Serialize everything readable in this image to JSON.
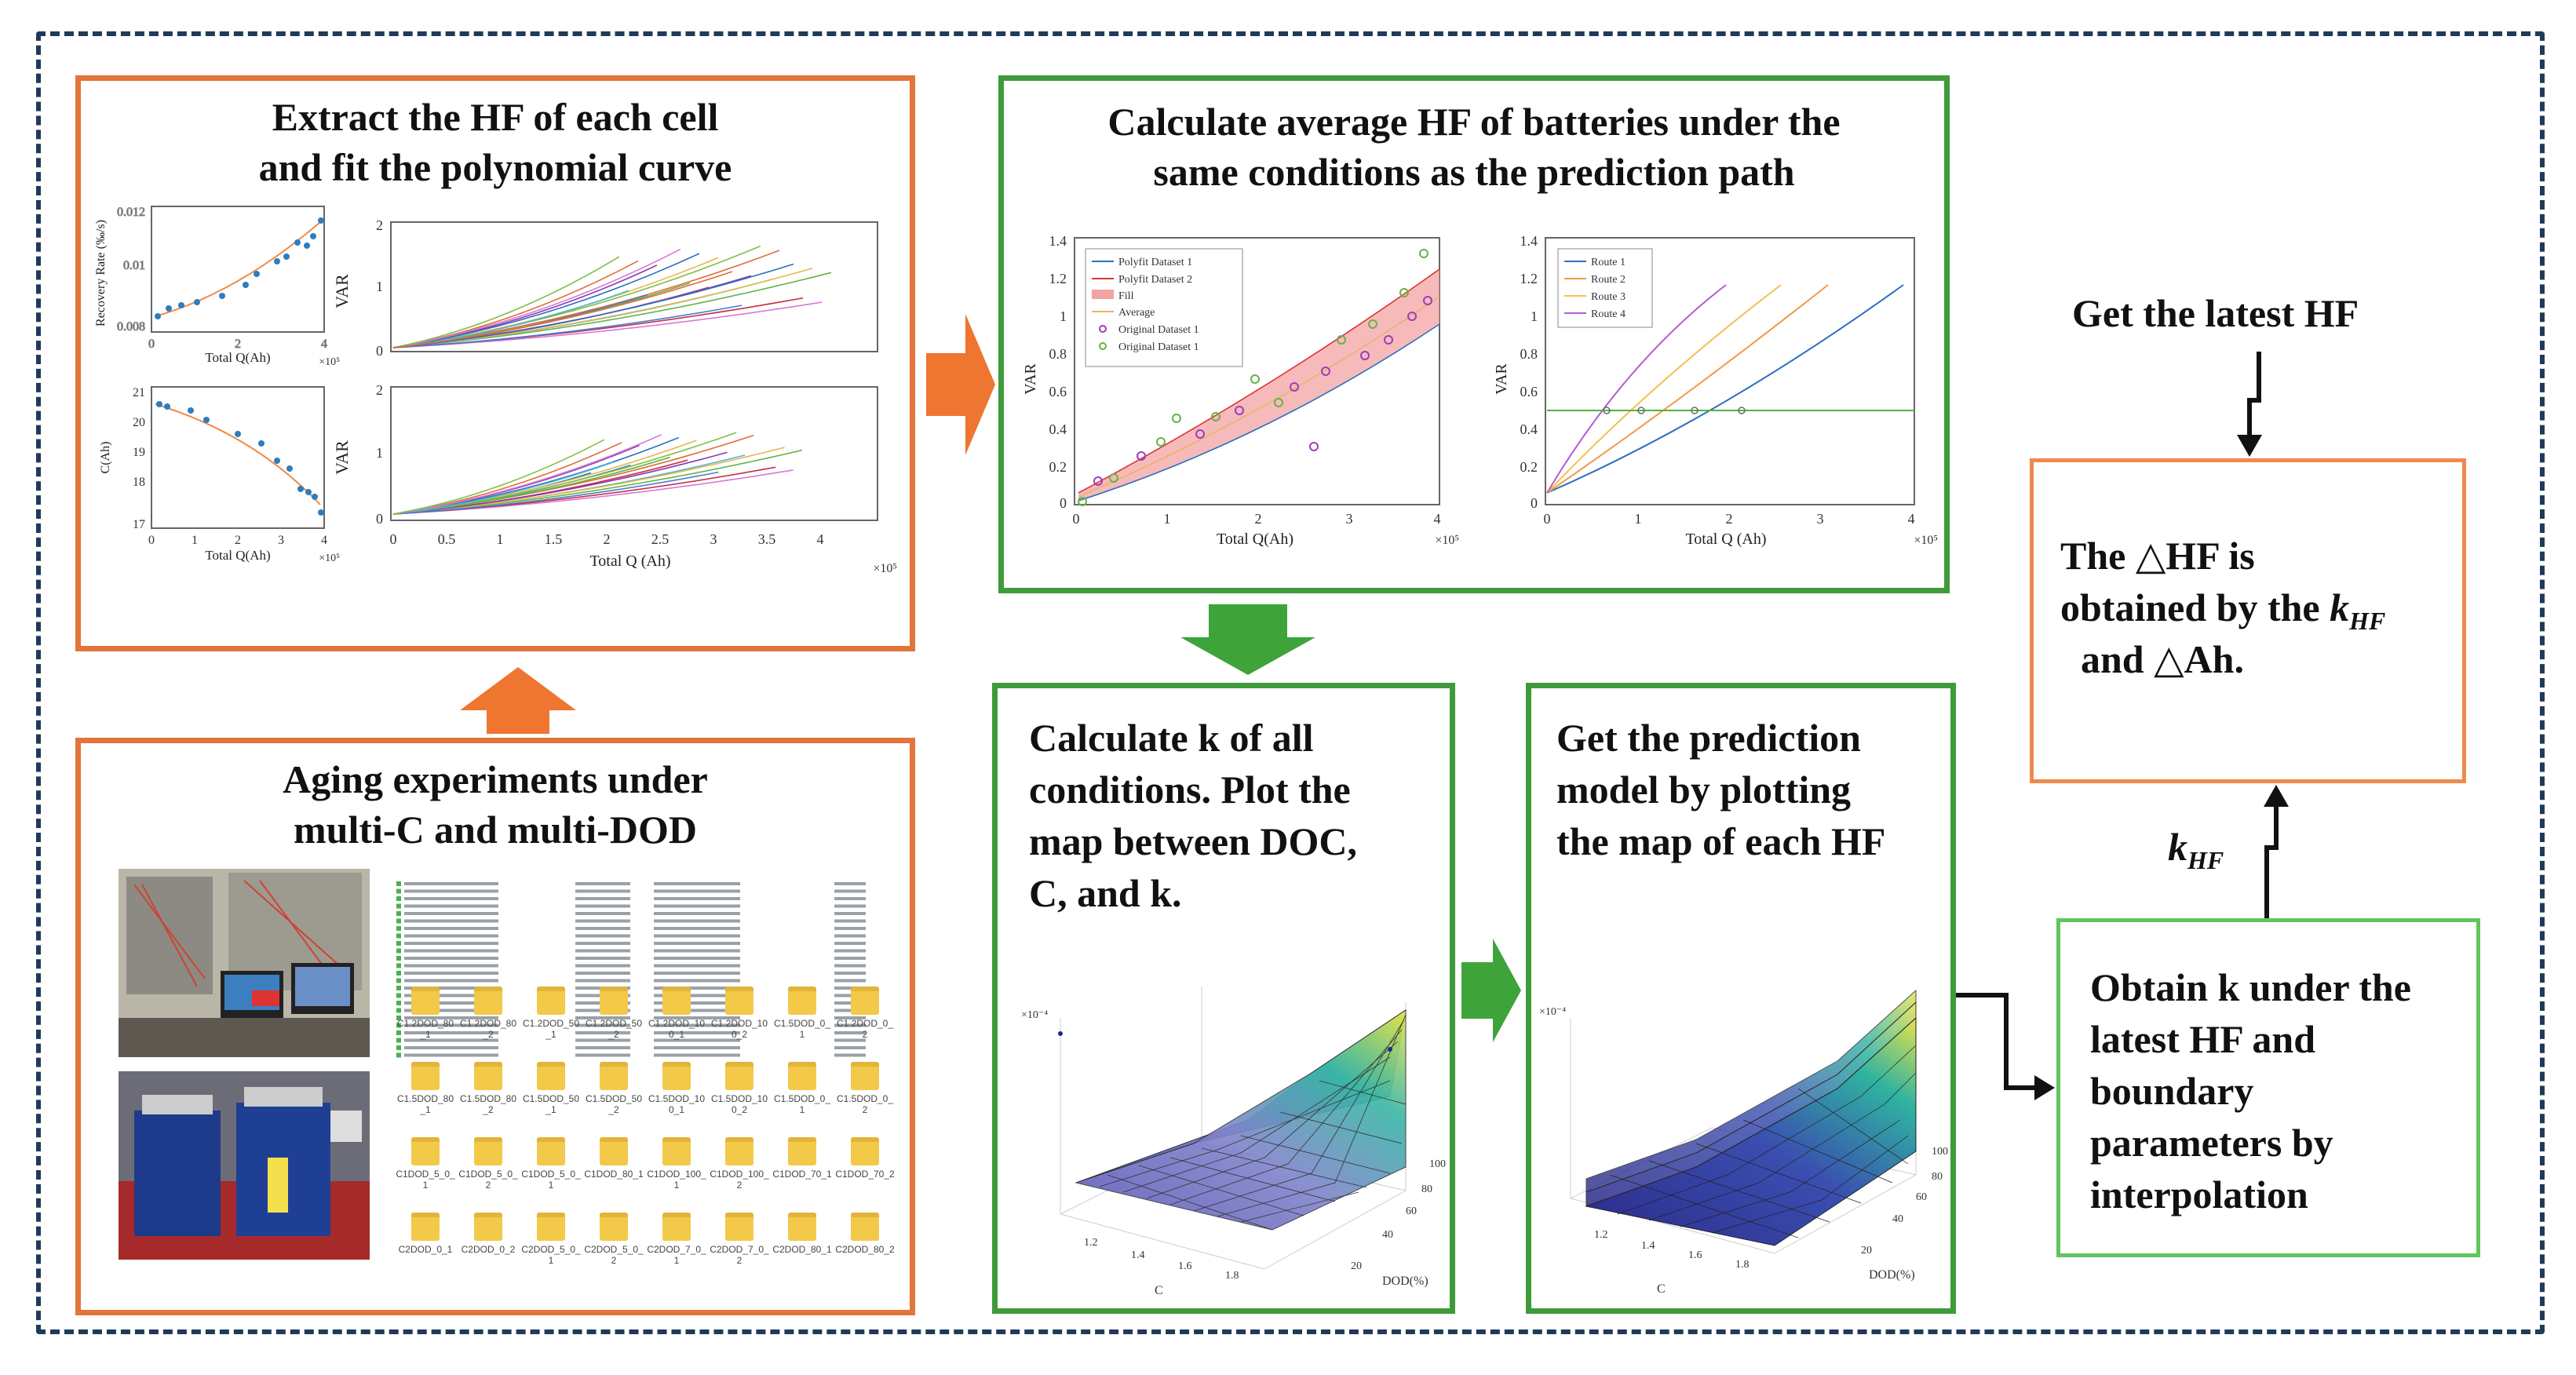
{
  "box1": {
    "title_line1": "Extract the HF of each cell",
    "title_line2": "and fit the polynomial curve",
    "plot_a_ylabel": "Recovery Rate (‰/s)",
    "plot_a_xlabel": "Total Q(Ah)",
    "plot_b_ylabel": "C(Ah)",
    "plot_b_xlabel": "Total Q(Ah)",
    "plot_c_ylabel": "VAR",
    "plot_d_ylabel": "VAR",
    "plot_d_xlabel": "Total Q (Ah)",
    "exp_label": "×10⁵"
  },
  "box2": {
    "title_line1": "Calculate average HF of batteries under the",
    "title_line2": "same conditions as the prediction path",
    "left_ylabel": "VAR",
    "left_xlabel": "Total Q(Ah)",
    "right_ylabel": "VAR",
    "right_xlabel": "Total Q (Ah)",
    "exp_label": "×10⁵",
    "legend_left": [
      "Polyfit Dataset 1",
      "Polyfit Dataset 2",
      "Fill",
      "Average",
      "Original Dataset 1",
      "Original Dataset 1"
    ],
    "legend_right": [
      "Route 1",
      "Route 2",
      "Route 3",
      "Route 4"
    ]
  },
  "box3": {
    "title": "Aging experiments under",
    "title2": "multi-C and multi-DOD"
  },
  "box4": {
    "lines": [
      "Calculate k of all",
      "conditions. Plot the",
      "map between DOC,",
      "C, and k."
    ],
    "xlabel": "C",
    "ylabel": "DOD(%)"
  },
  "box5": {
    "lines": [
      "Get the prediction",
      "model by plotting",
      "the map of each HF"
    ],
    "xlabel": "C",
    "ylabel": "DOD(%)"
  },
  "box6": {
    "lines": [
      "Obtain k under the",
      "latest HF and",
      "boundary",
      "parameters by",
      "interpolation"
    ]
  },
  "box7": {
    "line1": "The △HF is",
    "line2a": "obtained by the ",
    "line2k": "k",
    "line2sub": "HF",
    "line3": "and △Ah."
  },
  "top_right_label": "Get the latest HF",
  "khf_label_k": "k",
  "khf_label_sub": "HF",
  "file_names": [
    "C1.2DOD_80_1",
    "C1.2DOD_80_2",
    "C1.2DOD_50_1",
    "C1.2DOD_50_2",
    "C1.2DOD_100_1",
    "C1.2DOD_100_2",
    "C1.5DOD_0_1",
    "C1.2DOD_0_2",
    "C1.5DOD_80_1",
    "C1.5DOD_80_2",
    "C1.5DOD_50_1",
    "C1.5DOD_50_2",
    "C1.5DOD_100_1",
    "C1.5DOD_100_2",
    "C1.5DOD_0_1",
    "C1.5DOD_0_2",
    "C1DOD_5_0_1",
    "C1DOD_5_0_2",
    "C1DOD_5_0_1",
    "C1DOD_80_1",
    "C1DOD_100_1",
    "C1DOD_100_2",
    "C1DOD_70_1",
    "C1DOD_70_2",
    "C2DOD_0_1",
    "C2DOD_0_2",
    "C2DOD_5_0_1",
    "C2DOD_5_0_2",
    "C2DOD_7_0_1",
    "C2DOD_7_0_2",
    "C2DOD_80_1",
    "C2DOD_80_2"
  ],
  "colors": {
    "orange": "#e3743a",
    "green": "#3f9a3c",
    "arrow_orange": "#ee7630",
    "arrow_green": "#3ea43a",
    "navy": "#1f3a5a"
  }
}
